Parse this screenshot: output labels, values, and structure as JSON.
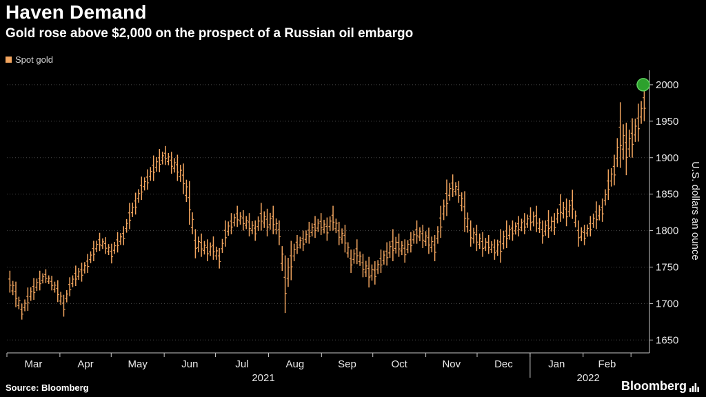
{
  "header": {
    "title": "Haven Demand",
    "subtitle": "Gold rose above $2,000 on the prospect of a Russian oil embargo"
  },
  "legend": {
    "label": "Spot gold",
    "swatch_color": "#f2a55f"
  },
  "footer": {
    "source": "Source: Bloomberg",
    "brand": "Bloomberg"
  },
  "chart_data": {
    "type": "bar",
    "variant": "hlc-price-bars",
    "title": "Haven Demand",
    "subtitle": "Gold rose above $2,000 on the prospect of a Russian oil embargo",
    "series_name": "Spot gold",
    "ylabel": "U.S. dollars an ounce",
    "ylim": [
      1638,
      2016
    ],
    "yticks": [
      1650,
      1700,
      1750,
      1800,
      1850,
      1900,
      1950,
      2000
    ],
    "grid": "horizontal-dotted",
    "legend_position": "top-left",
    "x_axis": {
      "months": [
        "Mar",
        "Apr",
        "May",
        "Jun",
        "Jul",
        "Aug",
        "Sep",
        "Oct",
        "Nov",
        "Dec",
        "Jan",
        "Feb"
      ],
      "month_day_offsets": [
        0,
        31,
        61,
        92,
        122,
        153,
        184,
        214,
        245,
        275,
        306,
        337,
        365
      ],
      "total_days": 375,
      "years": [
        {
          "label": "2021",
          "day_center": 150
        },
        {
          "label": "2022",
          "day_center": 340
        }
      ]
    },
    "bars_note": "approximate [high, low] per ~half-week, Mar 2021 - Mar 2022",
    "bars": [
      [
        1745,
        1715
      ],
      [
        1730,
        1695
      ],
      [
        1700,
        1678
      ],
      [
        1722,
        1690
      ],
      [
        1735,
        1705
      ],
      [
        1745,
        1718
      ],
      [
        1747,
        1728
      ],
      [
        1738,
        1718
      ],
      [
        1732,
        1702
      ],
      [
        1712,
        1682
      ],
      [
        1736,
        1710
      ],
      [
        1752,
        1724
      ],
      [
        1756,
        1730
      ],
      [
        1768,
        1742
      ],
      [
        1786,
        1758
      ],
      [
        1797,
        1772
      ],
      [
        1791,
        1768
      ],
      [
        1782,
        1755
      ],
      [
        1798,
        1770
      ],
      [
        1806,
        1780
      ],
      [
        1838,
        1802
      ],
      [
        1852,
        1822
      ],
      [
        1874,
        1842
      ],
      [
        1884,
        1856
      ],
      [
        1903,
        1868
      ],
      [
        1912,
        1880
      ],
      [
        1916,
        1890
      ],
      [
        1908,
        1878
      ],
      [
        1904,
        1868
      ],
      [
        1892,
        1850
      ],
      [
        1868,
        1808
      ],
      [
        1802,
        1762
      ],
      [
        1796,
        1764
      ],
      [
        1788,
        1758
      ],
      [
        1792,
        1760
      ],
      [
        1776,
        1748
      ],
      [
        1814,
        1778
      ],
      [
        1824,
        1795
      ],
      [
        1834,
        1805
      ],
      [
        1828,
        1800
      ],
      [
        1824,
        1792
      ],
      [
        1814,
        1786
      ],
      [
        1838,
        1800
      ],
      [
        1830,
        1792
      ],
      [
        1834,
        1795
      ],
      [
        1814,
        1780
      ],
      [
        1766,
        1687
      ],
      [
        1786,
        1732
      ],
      [
        1794,
        1768
      ],
      [
        1800,
        1772
      ],
      [
        1812,
        1782
      ],
      [
        1820,
        1790
      ],
      [
        1824,
        1794
      ],
      [
        1818,
        1786
      ],
      [
        1834,
        1800
      ],
      [
        1812,
        1780
      ],
      [
        1808,
        1770
      ],
      [
        1774,
        1742
      ],
      [
        1788,
        1754
      ],
      [
        1768,
        1736
      ],
      [
        1764,
        1722
      ],
      [
        1758,
        1726
      ],
      [
        1774,
        1742
      ],
      [
        1784,
        1752
      ],
      [
        1802,
        1758
      ],
      [
        1796,
        1764
      ],
      [
        1788,
        1756
      ],
      [
        1798,
        1770
      ],
      [
        1814,
        1782
      ],
      [
        1808,
        1776
      ],
      [
        1804,
        1768
      ],
      [
        1794,
        1758
      ],
      [
        1834,
        1790
      ],
      [
        1870,
        1820
      ],
      [
        1877,
        1846
      ],
      [
        1868,
        1838
      ],
      [
        1854,
        1798
      ],
      [
        1814,
        1778
      ],
      [
        1808,
        1772
      ],
      [
        1798,
        1764
      ],
      [
        1794,
        1768
      ],
      [
        1788,
        1760
      ],
      [
        1802,
        1756
      ],
      [
        1814,
        1776
      ],
      [
        1814,
        1786
      ],
      [
        1820,
        1792
      ],
      [
        1824,
        1795
      ],
      [
        1832,
        1800
      ],
      [
        1834,
        1798
      ],
      [
        1814,
        1782
      ],
      [
        1828,
        1790
      ],
      [
        1824,
        1794
      ],
      [
        1850,
        1812
      ],
      [
        1844,
        1806
      ],
      [
        1856,
        1816
      ],
      [
        1814,
        1778
      ],
      [
        1808,
        1780
      ],
      [
        1820,
        1792
      ],
      [
        1840,
        1802
      ],
      [
        1844,
        1812
      ],
      [
        1884,
        1842
      ],
      [
        1904,
        1862
      ],
      [
        1976,
        1886
      ],
      [
        1948,
        1876
      ],
      [
        1954,
        1900
      ],
      [
        1974,
        1922
      ],
      [
        2002,
        1950
      ]
    ],
    "last_point": {
      "value": 2000
    },
    "colors": {
      "bar": "#f2a55f",
      "grid": "#4a4a4a",
      "axis": "#c8c8c8",
      "label": "#e8e8e8",
      "background": "#000000",
      "marker_fill": "#2da12d",
      "marker_stroke": "#5ecf5e"
    }
  }
}
